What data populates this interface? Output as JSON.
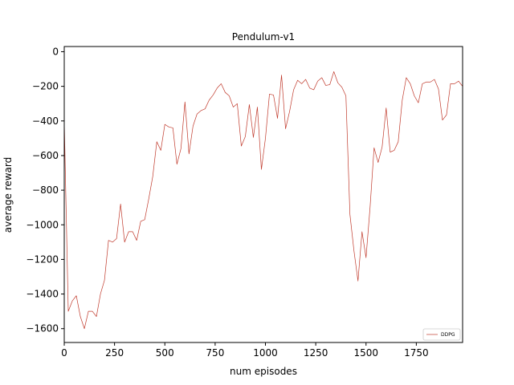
{
  "chart_data": {
    "type": "line",
    "title": "Pendulum-v1",
    "xlabel": "num episodes",
    "ylabel": "average reward",
    "xlim": [
      0,
      1980
    ],
    "ylim": [
      -1680,
      30
    ],
    "xticks": [
      0,
      250,
      500,
      750,
      1000,
      1250,
      1500,
      1750
    ],
    "xtick_labels": [
      "0",
      "250",
      "500",
      "750",
      "1000",
      "1250",
      "1500",
      "1750"
    ],
    "yticks": [
      0,
      -200,
      -400,
      -600,
      -800,
      -1000,
      -1200,
      -1400,
      -1600
    ],
    "ytick_labels": [
      "0",
      "−200",
      "−400",
      "−600",
      "−800",
      "−1000",
      "−1200",
      "−1400",
      "−1600"
    ],
    "grid": false,
    "legend_position": "bottom-right",
    "series": [
      {
        "name": "DDPG",
        "color": "#c0392b",
        "x": [
          0,
          20,
          40,
          60,
          80,
          100,
          120,
          140,
          160,
          180,
          200,
          220,
          240,
          260,
          280,
          300,
          320,
          340,
          360,
          380,
          400,
          420,
          440,
          460,
          480,
          500,
          520,
          540,
          560,
          580,
          600,
          620,
          640,
          660,
          680,
          700,
          720,
          740,
          760,
          780,
          800,
          820,
          840,
          860,
          880,
          900,
          920,
          940,
          960,
          980,
          1000,
          1020,
          1040,
          1060,
          1080,
          1100,
          1120,
          1140,
          1160,
          1180,
          1200,
          1220,
          1240,
          1260,
          1280,
          1300,
          1320,
          1340,
          1360,
          1380,
          1400,
          1420,
          1440,
          1460,
          1480,
          1500,
          1520,
          1540,
          1560,
          1580,
          1600,
          1620,
          1640,
          1660,
          1680,
          1700,
          1720,
          1740,
          1760,
          1780,
          1800,
          1820,
          1840,
          1860,
          1880,
          1900,
          1920,
          1940,
          1960,
          1980
        ],
        "values": [
          -400,
          -1500,
          -1440,
          -1410,
          -1530,
          -1600,
          -1500,
          -1500,
          -1530,
          -1400,
          -1320,
          -1090,
          -1100,
          -1080,
          -880,
          -1100,
          -1040,
          -1040,
          -1090,
          -980,
          -970,
          -850,
          -720,
          -520,
          -570,
          -420,
          -435,
          -440,
          -650,
          -560,
          -290,
          -590,
          -430,
          -360,
          -340,
          -330,
          -280,
          -250,
          -210,
          -185,
          -235,
          -255,
          -320,
          -300,
          -545,
          -490,
          -305,
          -495,
          -320,
          -680,
          -500,
          -245,
          -250,
          -385,
          -135,
          -445,
          -345,
          -220,
          -165,
          -185,
          -160,
          -210,
          -220,
          -170,
          -150,
          -195,
          -190,
          -115,
          -180,
          -205,
          -255,
          -940,
          -1150,
          -1325,
          -1040,
          -1190,
          -900,
          -555,
          -640,
          -550,
          -325,
          -580,
          -570,
          -520,
          -280,
          -150,
          -185,
          -255,
          -295,
          -185,
          -175,
          -175,
          -160,
          -215,
          -395,
          -365,
          -185,
          -185,
          -170,
          -200
        ]
      }
    ]
  }
}
